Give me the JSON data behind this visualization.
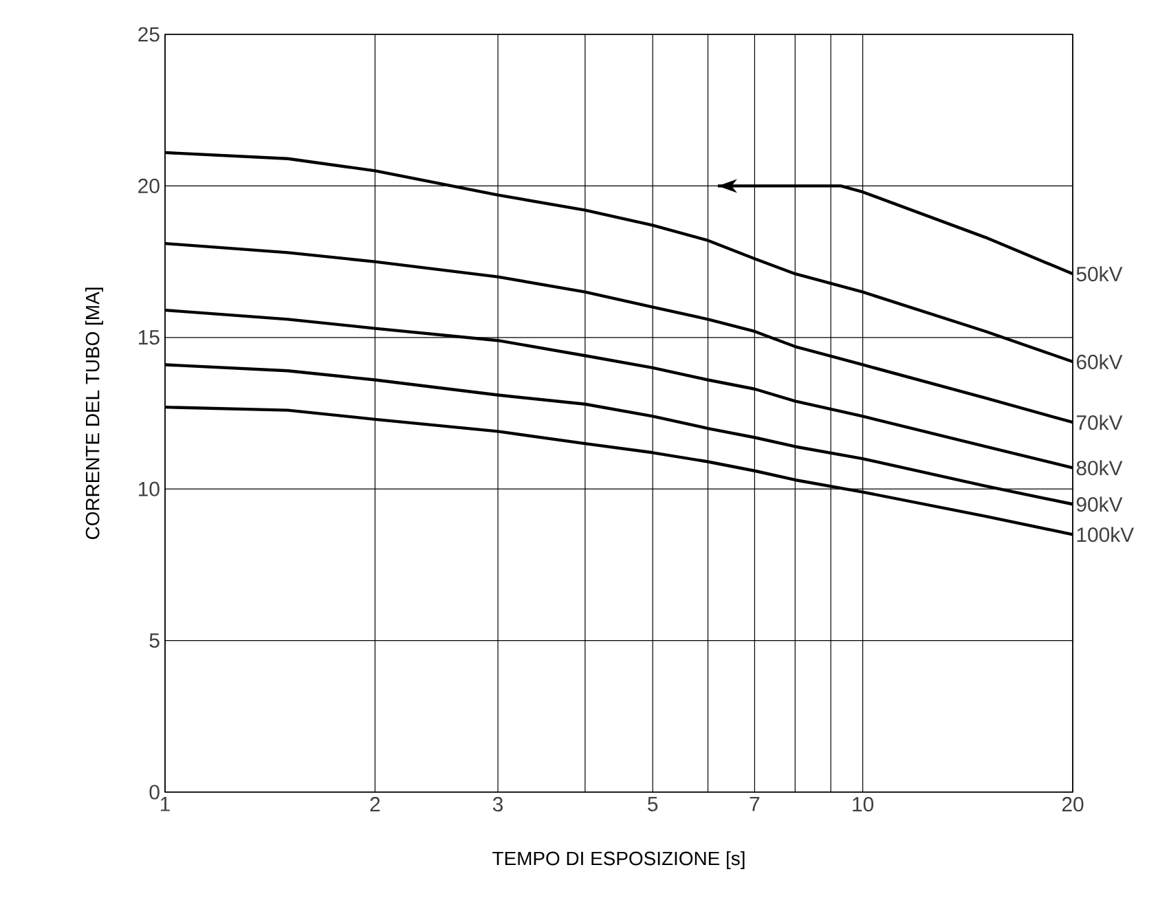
{
  "chart_data": {
    "type": "line",
    "xlabel": "TEMPO DI ESPOSIZIONE [s]",
    "ylabel": "CORRENTE DEL TUBO [MA]",
    "log": "x",
    "xlim": [
      1,
      20
    ],
    "ylim": [
      0,
      25
    ],
    "xticks": [
      1,
      2,
      3,
      {
        "value": 4,
        "label": null
      },
      5,
      {
        "value": 6,
        "label": null
      },
      7,
      {
        "value": 8,
        "label": null
      },
      {
        "value": 9,
        "label": null
      },
      10,
      20
    ],
    "yticks": [
      0,
      5,
      10,
      15,
      20,
      25
    ],
    "grid": true,
    "legend": false,
    "marker": "none",
    "line_style": "solid",
    "series": [
      {
        "name": "50kV",
        "color": "#000000",
        "x": [
          6.2,
          9.3,
          10,
          15,
          20
        ],
        "values": [
          20,
          20,
          19.8,
          18.3,
          17.1
        ]
      },
      {
        "name": "60kV",
        "color": "#000000",
        "x": [
          1,
          1.5,
          2,
          3,
          4,
          5,
          6,
          7,
          8,
          10,
          15,
          20
        ],
        "values": [
          21.1,
          20.9,
          20.5,
          19.7,
          19.2,
          18.7,
          18.2,
          17.6,
          17.1,
          16.5,
          15.2,
          14.2
        ]
      },
      {
        "name": "70kV",
        "color": "#000000",
        "x": [
          1,
          1.5,
          2,
          3,
          4,
          5,
          6,
          7,
          8,
          10,
          15,
          20
        ],
        "values": [
          18.1,
          17.8,
          17.5,
          17.0,
          16.5,
          16.0,
          15.6,
          15.2,
          14.7,
          14.1,
          13.0,
          12.2
        ]
      },
      {
        "name": "80kV",
        "color": "#000000",
        "x": [
          1,
          1.5,
          2,
          3,
          4,
          5,
          6,
          7,
          8,
          10,
          15,
          20
        ],
        "values": [
          15.9,
          15.6,
          15.3,
          14.9,
          14.4,
          14.0,
          13.6,
          13.3,
          12.9,
          12.4,
          11.4,
          10.7
        ]
      },
      {
        "name": "90kV",
        "color": "#000000",
        "x": [
          1,
          1.5,
          2,
          3,
          4,
          5,
          6,
          7,
          8,
          10,
          15,
          20
        ],
        "values": [
          14.1,
          13.9,
          13.6,
          13.1,
          12.8,
          12.4,
          12.0,
          11.7,
          11.4,
          11.0,
          10.1,
          9.5
        ]
      },
      {
        "name": "100kV",
        "color": "#000000",
        "x": [
          1,
          1.5,
          2,
          3,
          4,
          5,
          6,
          7,
          8,
          10,
          15,
          20
        ],
        "values": [
          12.7,
          12.6,
          12.3,
          11.9,
          11.5,
          11.2,
          10.9,
          10.6,
          10.3,
          9.9,
          9.1,
          8.5
        ]
      }
    ]
  }
}
